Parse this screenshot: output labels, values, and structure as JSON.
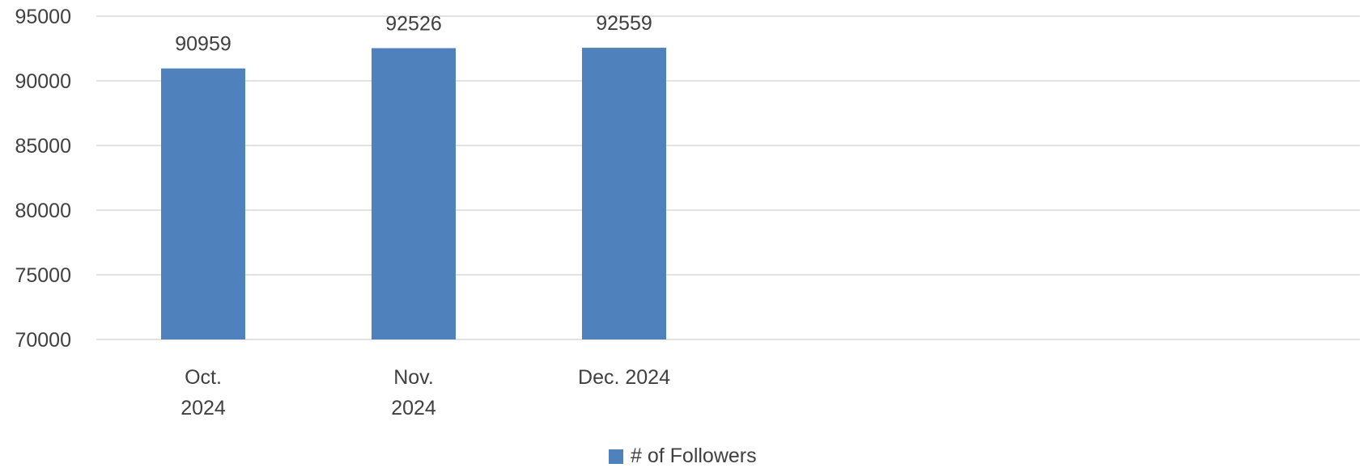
{
  "chart_data": {
    "type": "bar",
    "title": "",
    "xlabel": "",
    "ylabel": "",
    "categories": [
      [
        "Oct.",
        "2024"
      ],
      [
        "Nov.",
        "2024"
      ],
      [
        "Dec. 2024"
      ]
    ],
    "series": [
      {
        "name": "# of Followers",
        "values": [
          90959,
          92526,
          92559
        ],
        "color": "#4F81BD"
      }
    ],
    "ylim": [
      70000,
      95000
    ],
    "yticks": [
      70000,
      75000,
      80000,
      85000,
      90000,
      95000
    ],
    "grid": true,
    "legend_position": "bottom",
    "data_labels": [
      "90959",
      "92526",
      "92559"
    ]
  },
  "legend": {
    "items": [
      {
        "label": "# of Followers",
        "color": "#4F81BD"
      }
    ]
  }
}
